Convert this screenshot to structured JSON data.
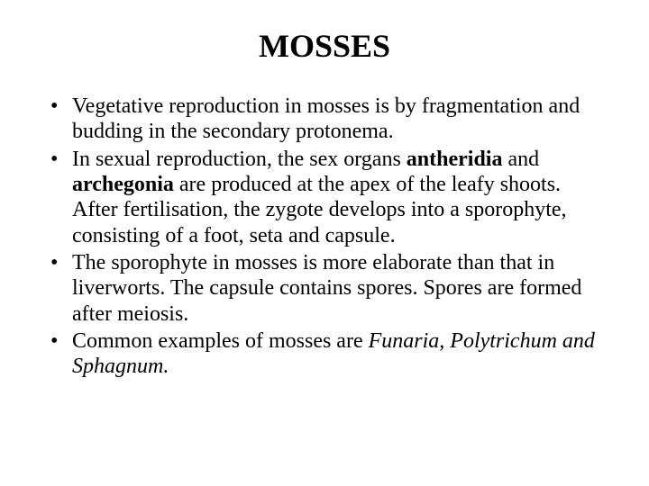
{
  "slide": {
    "title": "MOSSES",
    "title_fontsize": 36,
    "body_fontsize": 24,
    "line_height": 1.18,
    "background_color": "#ffffff",
    "text_color": "#000000",
    "font_family": "Times New Roman",
    "bullets": [
      {
        "segments": [
          {
            "text": "Vegetative reproduction in mosses is by fragmentation and budding in the secondary protonema.",
            "style": "normal"
          }
        ]
      },
      {
        "segments": [
          {
            "text": "In sexual reproduction, the sex organs ",
            "style": "normal"
          },
          {
            "text": "antheridia",
            "style": "bold"
          },
          {
            "text": " and ",
            "style": "normal"
          },
          {
            "text": "archegonia",
            "style": "bold"
          },
          {
            "text": " are produced at the apex of the leafy shoots. After fertilisation, the zygote develops into a sporophyte, consisting of a foot, seta and capsule.",
            "style": "normal"
          }
        ]
      },
      {
        "segments": [
          {
            "text": "The sporophyte in mosses is more elaborate than that in liverworts. The capsule contains spores. Spores are formed after meiosis.",
            "style": "normal"
          }
        ]
      },
      {
        "segments": [
          {
            "text": "Common examples of mosses are ",
            "style": "normal"
          },
          {
            "text": "Funaria, Polytrichum and Sphagnum.",
            "style": "italic"
          }
        ]
      }
    ]
  }
}
